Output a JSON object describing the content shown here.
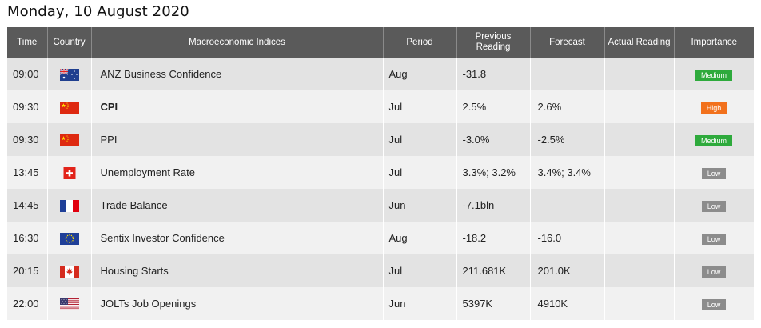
{
  "page": {
    "title": "Monday, 10 August 2020"
  },
  "headers": {
    "time": "Time",
    "country": "Country",
    "indices": "Macroeconomic Indices",
    "period": "Period",
    "previous": "Previous Reading",
    "forecast": "Forecast",
    "actual": "Actual Reading",
    "importance": "Importance"
  },
  "colors": {
    "header_bg": "#5a5a5a",
    "medium": "#2eaa3c",
    "high": "#f2711c",
    "low": "#8c8c8c"
  },
  "rows": [
    {
      "time": "09:00",
      "country": "Australia",
      "flag": "flag-au",
      "indicator": "ANZ Business Confidence",
      "period": "Aug",
      "previous": "-31.8",
      "forecast": "",
      "actual": "",
      "importance": "Medium",
      "importance_class": "medium",
      "bold": false
    },
    {
      "time": "09:30",
      "country": "China",
      "flag": "flag-cn",
      "indicator": "CPI",
      "period": "Jul",
      "previous": "2.5%",
      "forecast": "2.6%",
      "actual": "",
      "importance": "High",
      "importance_class": "high",
      "bold": true
    },
    {
      "time": "09:30",
      "country": "China",
      "flag": "flag-cn",
      "indicator": "PPI",
      "period": "Jul",
      "previous": "-3.0%",
      "forecast": "-2.5%",
      "actual": "",
      "importance": "Medium",
      "importance_class": "medium",
      "bold": false
    },
    {
      "time": "13:45",
      "country": "Switzerland",
      "flag": "flag-ch",
      "indicator": "Unemployment Rate",
      "period": "Jul",
      "previous": "3.3%; 3.2%",
      "forecast": "3.4%; 3.4%",
      "actual": "",
      "importance": "Low",
      "importance_class": "low",
      "bold": false
    },
    {
      "time": "14:45",
      "country": "France",
      "flag": "flag-fr",
      "indicator": "Trade Balance",
      "period": "Jun",
      "previous": "-7.1bln",
      "forecast": "",
      "actual": "",
      "importance": "Low",
      "importance_class": "low",
      "bold": false
    },
    {
      "time": "16:30",
      "country": "Euro Zone",
      "flag": "flag-eu",
      "indicator": "Sentix Investor Confidence",
      "period": "Aug",
      "previous": "-18.2",
      "forecast": "-16.0",
      "actual": "",
      "importance": "Low",
      "importance_class": "low",
      "bold": false
    },
    {
      "time": "20:15",
      "country": "Canada",
      "flag": "flag-ca",
      "indicator": "Housing Starts",
      "period": "Jul",
      "previous": "211.681K",
      "forecast": "201.0K",
      "actual": "",
      "importance": "Low",
      "importance_class": "low",
      "bold": false
    },
    {
      "time": "22:00",
      "country": "United States",
      "flag": "flag-us",
      "indicator": "JOLTs Job Openings",
      "period": "Jun",
      "previous": "5397K",
      "forecast": "4910K",
      "actual": "",
      "importance": "Low",
      "importance_class": "low",
      "bold": false
    }
  ]
}
